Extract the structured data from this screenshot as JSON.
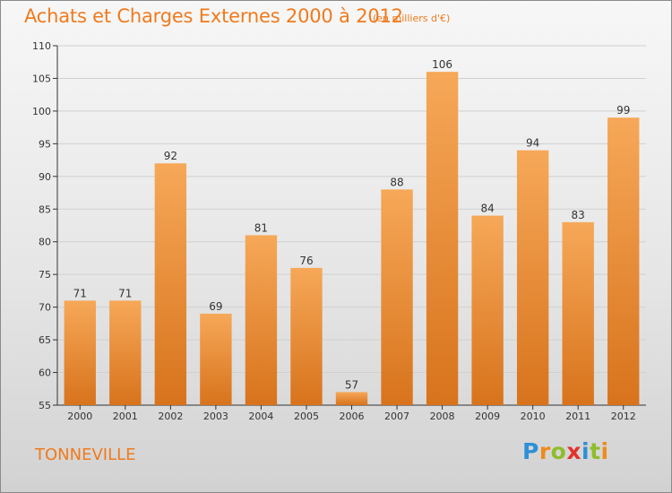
{
  "header": {
    "title": "Achats et Charges Externes 2000 à 2012",
    "unit": "(en milliers d'€)"
  },
  "footer": {
    "commune": "TONNEVILLE",
    "brand": {
      "text": "Proxiti",
      "letter_colors": [
        "#2e8fd6",
        "#ef8b1b",
        "#8fbd2c",
        "#e2332b",
        "#2e8fd6",
        "#8fbd2c",
        "#ef8b1b"
      ]
    }
  },
  "colors": {
    "title": "#f07a1c",
    "bar_top": "#f6a858",
    "bar_bottom": "#d8731c",
    "grid": "#d0d0d0",
    "axis": "#333333",
    "text": "#333333"
  },
  "chart_data": {
    "type": "bar",
    "title": "Achats et Charges Externes 2000 à 2012",
    "subtitle": "(en milliers d'€)",
    "xlabel": "",
    "ylabel": "",
    "categories": [
      "2000",
      "2001",
      "2002",
      "2003",
      "2004",
      "2005",
      "2006",
      "2007",
      "2008",
      "2009",
      "2010",
      "2011",
      "2012"
    ],
    "values": [
      71,
      71,
      92,
      69,
      81,
      76,
      57,
      88,
      106,
      84,
      94,
      83,
      99
    ],
    "ylim": [
      55,
      110
    ],
    "yticks": [
      55,
      60,
      65,
      70,
      75,
      80,
      85,
      90,
      95,
      100,
      105,
      110
    ],
    "grid": "horizontal",
    "data_labels": true
  }
}
